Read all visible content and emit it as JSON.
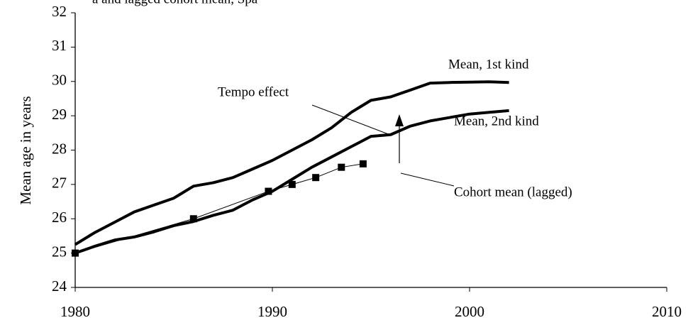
{
  "chart_data": {
    "type": "line",
    "title": "a and lagged cohort mean, Spa",
    "ylabel": "Mean age in years",
    "xlim": [
      1980,
      2010
    ],
    "xticks": [
      1980,
      1990,
      2000,
      2010
    ],
    "ylim": [
      24,
      32
    ],
    "yticks": [
      24,
      25,
      26,
      27,
      28,
      29,
      30,
      31,
      32
    ],
    "grid": false,
    "annotations": [
      "Tempo effect",
      "Mean, 1st kind",
      "Mean, 2nd kind",
      "Cohort mean (lagged)"
    ],
    "series": [
      {
        "name": "Mean, 1st kind",
        "color": "#000000",
        "x": [
          1980,
          1981,
          1982,
          1983,
          1984,
          1985,
          1986,
          1987,
          1988,
          1989,
          1990,
          1991,
          1992,
          1993,
          1994,
          1995,
          1996,
          1997,
          1998,
          1999,
          2000,
          2001,
          2002
        ],
        "values": [
          25.25,
          25.6,
          25.9,
          26.2,
          26.4,
          26.6,
          26.95,
          27.05,
          27.2,
          27.45,
          27.7,
          28.0,
          28.3,
          28.65,
          29.1,
          29.45,
          29.55,
          29.75,
          29.95,
          29.97,
          29.98,
          29.99,
          29.97
        ]
      },
      {
        "name": "Mean, 2nd kind",
        "color": "#000000",
        "x": [
          1980,
          1981,
          1982,
          1983,
          1984,
          1985,
          1986,
          1987,
          1988,
          1989,
          1990,
          1991,
          1992,
          1993,
          1994,
          1995,
          1996,
          1997,
          1998,
          1999,
          2000,
          2001,
          2002
        ],
        "values": [
          25.0,
          25.2,
          25.38,
          25.47,
          25.62,
          25.8,
          25.92,
          26.1,
          26.25,
          26.55,
          26.8,
          27.15,
          27.5,
          27.8,
          28.1,
          28.4,
          28.45,
          28.7,
          28.85,
          28.95,
          29.05,
          29.1,
          29.15
        ]
      },
      {
        "name": "Cohort mean (lagged)",
        "color": "#000000",
        "x": [
          1980,
          1986,
          1989.8,
          1991,
          1992.2,
          1993.5,
          1994.6
        ],
        "values": [
          25.0,
          26.0,
          26.8,
          27.0,
          27.2,
          27.5,
          27.6
        ]
      }
    ]
  }
}
